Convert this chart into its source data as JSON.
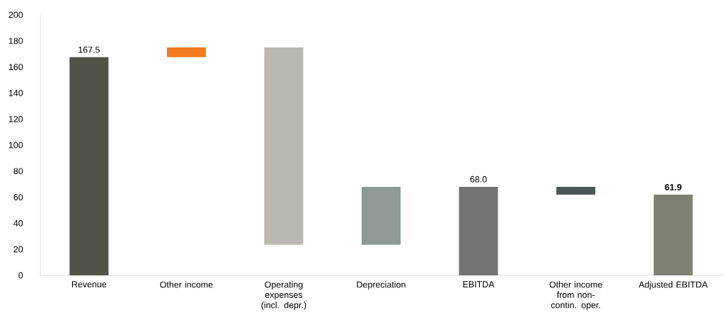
{
  "chart_data": {
    "type": "bar",
    "categories": [
      "Revenue",
      "Other income",
      "Operating expenses (incl. depr.)",
      "Depreciation",
      "EBITDA",
      "Other income from non-contin. oper.",
      "Adjusted EBITDA"
    ],
    "values": [
      167.5,
      7.5,
      -151.5,
      44.5,
      68.0,
      -6.1,
      61.9
    ],
    "base": [
      0,
      167.5,
      175,
      23.5,
      0,
      68.0,
      0
    ],
    "colors": [
      "#535249",
      "#f47b20",
      "#bab8b0",
      "#8e9a98",
      "#737373",
      "#4d5656",
      "#7f7f72"
    ],
    "value_labels": [
      "167.5",
      null,
      null,
      null,
      "68.0",
      null,
      "**61.9**"
    ],
    "ylim": [
      0,
      200
    ],
    "yticks": [
      0,
      20,
      40,
      60,
      80,
      100,
      120,
      140,
      160,
      180,
      200
    ]
  }
}
